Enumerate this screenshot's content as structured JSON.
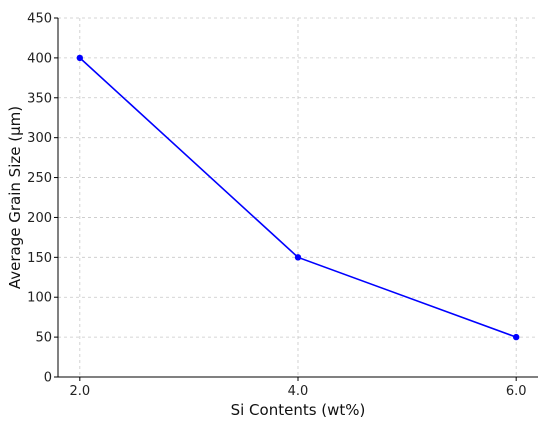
{
  "chart_data": {
    "type": "line",
    "xlabel": "Si Contents (wt%)",
    "ylabel": "Average Grain Size (μm)",
    "x": [
      2.0,
      4.0,
      6.0
    ],
    "x_tick_labels": [
      "2.0",
      "4.0",
      "6.0"
    ],
    "y_ticks": [
      0,
      50,
      100,
      150,
      200,
      250,
      300,
      350,
      400,
      450
    ],
    "y_tick_labels": [
      "0",
      "50",
      "100",
      "150",
      "200",
      "250",
      "300",
      "350",
      "400",
      "450"
    ],
    "xlim": [
      1.8,
      6.2
    ],
    "ylim": [
      0,
      450
    ],
    "grid": true,
    "series": [
      {
        "values": [
          400,
          150,
          50
        ],
        "color": "#0000ff",
        "marker": "circle"
      }
    ]
  }
}
